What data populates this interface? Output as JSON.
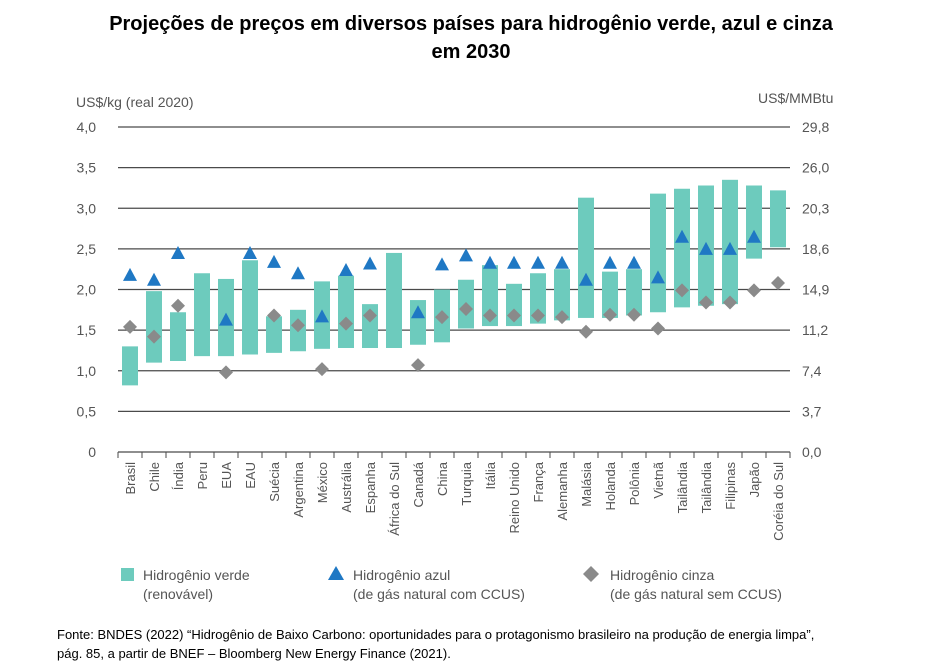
{
  "title_line1": "Projeções de preços em diversos países para hidrogênio verde, azul e cinza",
  "title_line2": "em 2030",
  "source_line1": "Fonte: BNDES (2022)  “Hidrogênio de Baixo Carbono: oportunidades para o protagonismo brasileiro na produção de energia limpa”,",
  "source_line2": "pág. 85, a partir de BNEF – Bloomberg New Energy Finance (2021).",
  "colors": {
    "green": "#6dcbbd",
    "blue": "#1f78c4",
    "gray": "#8a8a8a",
    "grid": "#4a4a4a",
    "axis_text": "#555555"
  },
  "chart_data": {
    "type": "range-bar-with-markers",
    "y_left_label": "US$/kg (real 2020)",
    "y_right_label": "US$/MMBtu",
    "ylim": [
      0,
      4.0
    ],
    "y_left_ticks": [
      "4,0",
      "3,5",
      "3,0",
      "2,5",
      "2,0",
      "1,5",
      "1,0",
      "0,5",
      "0"
    ],
    "y_left_tick_values": [
      4.0,
      3.5,
      3.0,
      2.5,
      2.0,
      1.5,
      1.0,
      0.5,
      0
    ],
    "y_right_ticks": [
      "29,8",
      "26,0",
      "20,3",
      "18,6",
      "14,9",
      "11,2",
      "7,4",
      "3,7",
      "0,0"
    ],
    "grid": true,
    "categories": [
      "Brasil",
      "Chile",
      "Índia",
      "Peru",
      "EUA",
      "EAU",
      "Suécia",
      "Argentina",
      "México",
      "Austrália",
      "Espanha",
      "África do Sul",
      "Canadá",
      "China",
      "Turquia",
      "Itália",
      "Reino Unido",
      "França",
      "Alemanha",
      "Malásia",
      "Holanda",
      "Polônia",
      "Vietnã",
      "Tailândia",
      "Tailândia",
      "Filipinas",
      "Japão",
      "Coréia do Sul"
    ],
    "series": [
      {
        "name": "Hidrogênio verde (renovável)",
        "type": "range",
        "low": [
          0.82,
          1.1,
          1.12,
          1.18,
          1.18,
          1.2,
          1.22,
          1.24,
          1.27,
          1.28,
          1.28,
          1.28,
          1.32,
          1.35,
          1.52,
          1.55,
          1.55,
          1.58,
          1.62,
          1.65,
          1.65,
          1.68,
          1.72,
          1.78,
          1.8,
          1.82,
          2.38,
          2.52
        ],
        "high": [
          1.3,
          1.98,
          1.72,
          2.2,
          2.13,
          2.36,
          1.67,
          1.75,
          2.1,
          2.17,
          1.82,
          2.45,
          1.87,
          2.0,
          2.12,
          2.3,
          2.07,
          2.2,
          2.25,
          3.13,
          2.22,
          2.25,
          3.18,
          3.24,
          3.28,
          3.35,
          3.28,
          3.22
        ]
      },
      {
        "name": "Hidrogênio azul (de gás natural com CCUS)",
        "type": "marker",
        "values": [
          2.18,
          2.12,
          2.45,
          null,
          1.63,
          2.45,
          2.34,
          2.2,
          1.67,
          2.24,
          2.32,
          null,
          1.72,
          2.31,
          2.42,
          2.33,
          2.33,
          2.33,
          2.33,
          2.12,
          2.33,
          2.33,
          2.15,
          2.65,
          2.5,
          2.5,
          2.65,
          null
        ]
      },
      {
        "name": "Hidrogênio cinza (de gás natural sem CCUS)",
        "type": "marker",
        "values": [
          1.54,
          1.42,
          1.8,
          null,
          0.98,
          null,
          1.68,
          1.56,
          1.02,
          1.58,
          1.68,
          null,
          1.07,
          1.66,
          1.76,
          1.68,
          1.68,
          1.68,
          1.66,
          1.48,
          1.69,
          1.69,
          1.52,
          1.99,
          1.84,
          1.84,
          1.99,
          2.08
        ]
      }
    ],
    "legend": [
      {
        "line1": "Hidrogênio verde",
        "line2": "(renovável)"
      },
      {
        "line1": "Hidrogênio azul",
        "line2": "(de gás natural com CCUS)"
      },
      {
        "line1": "Hidrogênio cinza",
        "line2": "(de gás natural sem CCUS)"
      }
    ],
    "legend_position": "bottom"
  }
}
